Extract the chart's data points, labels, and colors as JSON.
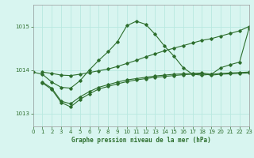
{
  "title": "Graphe pression niveau de la mer (hPa)",
  "background_color": "#d8f5f0",
  "grid_color": "#b8e8e0",
  "line_color": "#2d6e2d",
  "xlim": [
    0,
    23
  ],
  "ylim": [
    1012.7,
    1015.5
  ],
  "yticks": [
    1013,
    1014,
    1015
  ],
  "xticks": [
    0,
    1,
    2,
    3,
    4,
    5,
    6,
    7,
    8,
    9,
    10,
    11,
    12,
    13,
    14,
    15,
    16,
    17,
    18,
    19,
    20,
    21,
    22,
    23
  ],
  "series": [
    {
      "x": [
        0,
        1,
        2,
        3,
        4,
        5,
        6,
        7,
        8,
        9,
        10,
        11,
        12,
        13,
        14,
        15,
        16,
        17,
        18,
        19,
        20,
        21,
        22,
        23
      ],
      "y": [
        1013.95,
        1013.9,
        1013.72,
        1013.6,
        1013.58,
        1013.75,
        1014.0,
        1014.22,
        1014.42,
        1014.65,
        1015.02,
        1015.12,
        1015.05,
        1014.82,
        1014.55,
        1014.32,
        1014.05,
        1013.9,
        1013.88,
        1013.9,
        1014.05,
        1014.12,
        1014.18,
        1014.95
      ]
    },
    {
      "x": [
        1,
        2,
        3,
        4,
        5,
        6,
        7,
        8,
        9,
        10,
        11,
        12,
        13,
        14,
        15,
        16,
        17,
        18,
        19,
        20,
        21,
        22,
        23
      ],
      "y": [
        1013.95,
        1013.92,
        1013.88,
        1013.87,
        1013.9,
        1013.94,
        1013.98,
        1014.02,
        1014.08,
        1014.15,
        1014.22,
        1014.3,
        1014.37,
        1014.44,
        1014.5,
        1014.56,
        1014.62,
        1014.68,
        1014.72,
        1014.78,
        1014.84,
        1014.9,
        1015.0
      ]
    },
    {
      "x": [
        1,
        2,
        3,
        4,
        5,
        6,
        7,
        8,
        9,
        10,
        11,
        12,
        13,
        14,
        15,
        16,
        17,
        18,
        19,
        20,
        21,
        22,
        23
      ],
      "y": [
        1013.72,
        1013.58,
        1013.28,
        1013.22,
        1013.38,
        1013.5,
        1013.6,
        1013.66,
        1013.72,
        1013.77,
        1013.8,
        1013.83,
        1013.86,
        1013.88,
        1013.9,
        1013.91,
        1013.92,
        1013.93,
        1013.9,
        1013.92,
        1013.93,
        1013.94,
        1013.95
      ]
    },
    {
      "x": [
        1,
        2,
        3,
        4,
        5,
        6,
        7,
        8,
        9,
        10,
        11,
        12,
        13,
        14,
        15,
        16,
        17,
        18,
        19,
        20,
        21,
        22,
        23
      ],
      "y": [
        1013.7,
        1013.55,
        1013.25,
        1013.15,
        1013.32,
        1013.45,
        1013.56,
        1013.62,
        1013.68,
        1013.73,
        1013.77,
        1013.8,
        1013.83,
        1013.85,
        1013.87,
        1013.89,
        1013.9,
        1013.91,
        1013.88,
        1013.9,
        1013.91,
        1013.92,
        1013.93
      ]
    }
  ]
}
